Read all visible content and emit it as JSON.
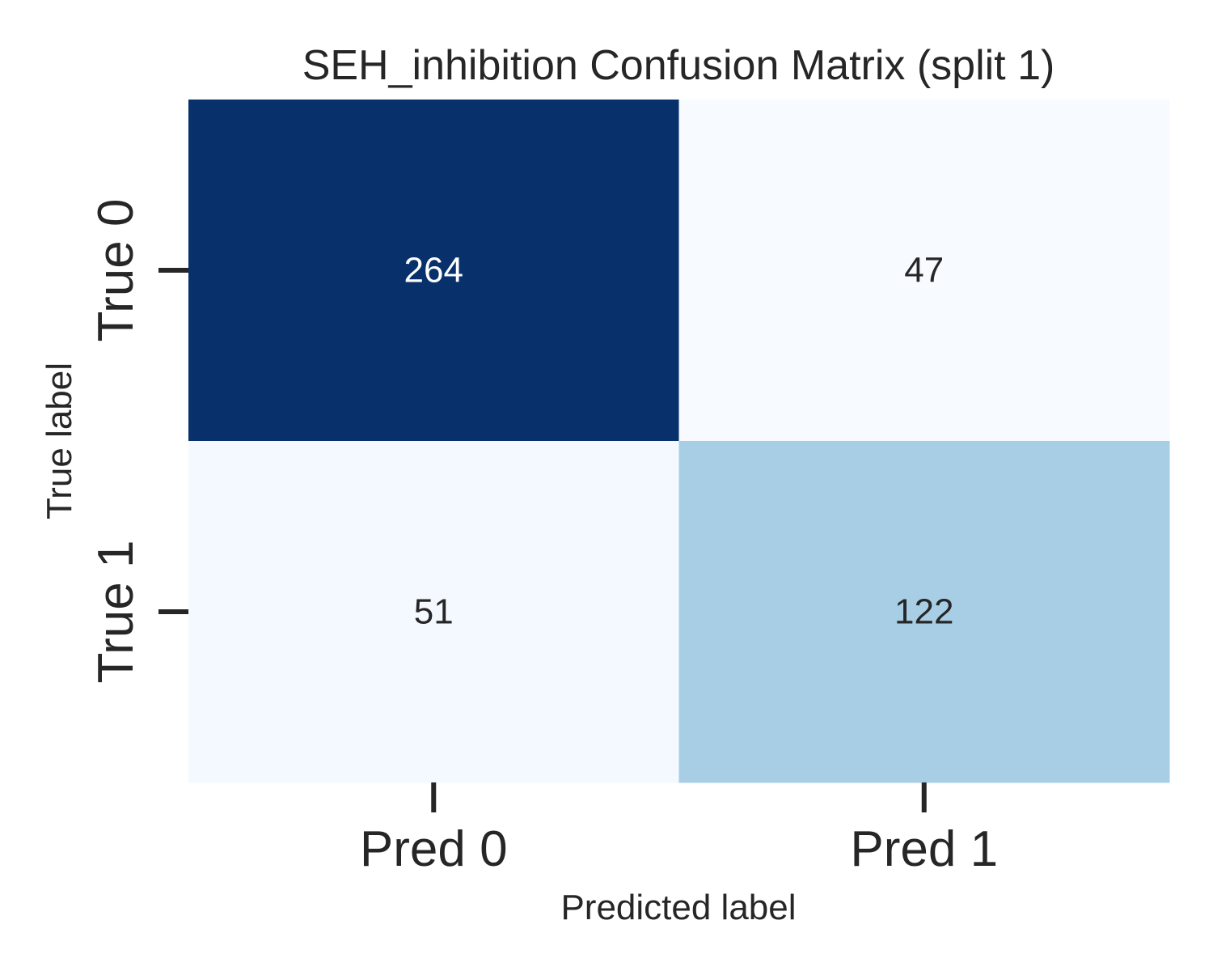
{
  "chart_data": {
    "type": "heatmap",
    "title": "SEH_inhibition Confusion Matrix (split 1)",
    "xlabel": "Predicted label",
    "ylabel": "True label",
    "x_categories": [
      "Pred 0",
      "Pred 1"
    ],
    "y_categories": [
      "True 0",
      "True 1"
    ],
    "values": [
      [
        264,
        47
      ],
      [
        51,
        122
      ]
    ],
    "colormap": "Blues",
    "colorbar": false,
    "grid": false,
    "colors": {
      "text_dark": "#262626",
      "text_light": "#ffffff",
      "tick": "#262626"
    }
  }
}
